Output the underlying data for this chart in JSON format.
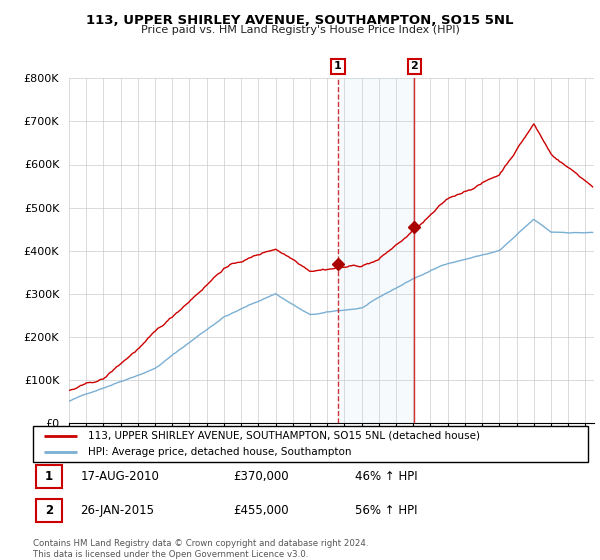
{
  "title": "113, UPPER SHIRLEY AVENUE, SOUTHAMPTON, SO15 5NL",
  "subtitle": "Price paid vs. HM Land Registry's House Price Index (HPI)",
  "sale1_date": 2010.63,
  "sale1_price": 370000,
  "sale1_label": "17-AUG-2010",
  "sale1_hpi_pct": "46% ↑ HPI",
  "sale2_date": 2015.07,
  "sale2_price": 455000,
  "sale2_label": "26-JAN-2015",
  "sale2_hpi_pct": "56% ↑ HPI",
  "line1_color": "#cc0000",
  "line2_color": "#7aafd4",
  "shade_color": "#ddeeff",
  "marker_color": "#aa0000",
  "legend1": "113, UPPER SHIRLEY AVENUE, SOUTHAMPTON, SO15 5NL (detached house)",
  "legend2": "HPI: Average price, detached house, Southampton",
  "footer": "Contains HM Land Registry data © Crown copyright and database right 2024.\nThis data is licensed under the Open Government Licence v3.0.",
  "ylim": [
    0,
    800000
  ],
  "xlim_start": 1995.0,
  "xlim_end": 2025.5
}
